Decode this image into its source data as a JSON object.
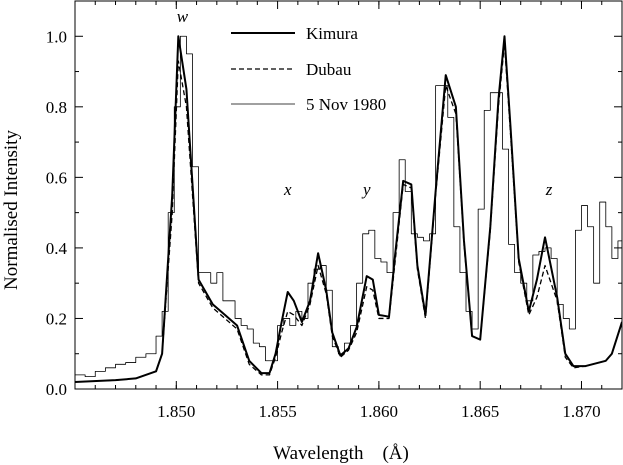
{
  "chart_data": {
    "type": "line",
    "xlabel": "Wavelength    (Å)",
    "ylabel": "Normalised Intensity",
    "xlim": [
      1.845,
      1.872
    ],
    "ylim": [
      0.0,
      1.1
    ],
    "xticks": [
      1.85,
      1.855,
      1.86,
      1.865,
      1.87
    ],
    "xtick_labels": [
      "1.850",
      "1.855",
      "1.860",
      "1.865",
      "1.870"
    ],
    "yticks": [
      0.0,
      0.2,
      0.4,
      0.6,
      0.8,
      1.0
    ],
    "ytick_labels": [
      "0.0",
      "0.2",
      "0.4",
      "0.6",
      "0.8",
      "1.0"
    ],
    "grid": false,
    "legend_position": "top-center",
    "annotations": [
      {
        "text": "w",
        "x": 1.8503,
        "y": 1.04
      },
      {
        "text": "x",
        "x": 1.8555,
        "y": 0.55
      },
      {
        "text": "y",
        "x": 1.8594,
        "y": 0.55
      },
      {
        "text": "z",
        "x": 1.8684,
        "y": 0.55
      }
    ],
    "series": [
      {
        "name": "Kimura",
        "style": "solid-thick",
        "x": [
          1.845,
          1.847,
          1.848,
          1.849,
          1.8493,
          1.8498,
          1.8501,
          1.8505,
          1.8511,
          1.8518,
          1.8524,
          1.853,
          1.8536,
          1.8542,
          1.8546,
          1.8549,
          1.8552,
          1.8555,
          1.8558,
          1.8562,
          1.8566,
          1.857,
          1.8574,
          1.8577,
          1.8581,
          1.8585,
          1.8589,
          1.8594,
          1.8597,
          1.86,
          1.8605,
          1.8608,
          1.8612,
          1.8616,
          1.8619,
          1.8623,
          1.8628,
          1.8633,
          1.8638,
          1.8642,
          1.8646,
          1.865,
          1.8655,
          1.8659,
          1.8662,
          1.8665,
          1.8669,
          1.8674,
          1.8678,
          1.8682,
          1.8688,
          1.8692,
          1.8696,
          1.8702,
          1.8712,
          1.8715,
          1.872
        ],
        "y": [
          0.02,
          0.025,
          0.03,
          0.05,
          0.1,
          0.55,
          1.0,
          0.85,
          0.31,
          0.24,
          0.21,
          0.18,
          0.08,
          0.045,
          0.045,
          0.1,
          0.19,
          0.275,
          0.25,
          0.19,
          0.25,
          0.385,
          0.28,
          0.16,
          0.095,
          0.115,
          0.175,
          0.32,
          0.31,
          0.21,
          0.205,
          0.38,
          0.59,
          0.58,
          0.35,
          0.21,
          0.56,
          0.89,
          0.8,
          0.42,
          0.15,
          0.14,
          0.46,
          0.82,
          1.0,
          0.74,
          0.37,
          0.22,
          0.31,
          0.43,
          0.26,
          0.1,
          0.065,
          0.065,
          0.08,
          0.1,
          0.19
        ]
      },
      {
        "name": "Dubau",
        "style": "dashed",
        "x": [
          1.845,
          1.847,
          1.848,
          1.849,
          1.8493,
          1.8498,
          1.8501,
          1.8505,
          1.8511,
          1.8518,
          1.8524,
          1.853,
          1.8536,
          1.8542,
          1.8546,
          1.8549,
          1.8552,
          1.8555,
          1.8558,
          1.8562,
          1.8566,
          1.857,
          1.8574,
          1.8577,
          1.8581,
          1.8585,
          1.8589,
          1.8594,
          1.8597,
          1.86,
          1.8605,
          1.8608,
          1.8612,
          1.8616,
          1.8619,
          1.8623,
          1.8628,
          1.8633,
          1.8638,
          1.8642,
          1.8646,
          1.865,
          1.8655,
          1.8659,
          1.8662,
          1.8665,
          1.8669,
          1.8674,
          1.8678,
          1.8682,
          1.8688,
          1.8692,
          1.8696,
          1.8702,
          1.8712,
          1.8715,
          1.872
        ],
        "y": [
          0.02,
          0.025,
          0.03,
          0.05,
          0.1,
          0.5,
          0.93,
          0.8,
          0.3,
          0.23,
          0.2,
          0.17,
          0.07,
          0.04,
          0.04,
          0.09,
          0.16,
          0.22,
          0.21,
          0.18,
          0.24,
          0.35,
          0.27,
          0.15,
          0.09,
          0.11,
          0.16,
          0.29,
          0.28,
          0.2,
          0.2,
          0.36,
          0.58,
          0.57,
          0.34,
          0.2,
          0.55,
          0.86,
          0.78,
          0.41,
          0.15,
          0.14,
          0.45,
          0.8,
          0.98,
          0.72,
          0.36,
          0.21,
          0.26,
          0.35,
          0.25,
          0.09,
          0.06,
          0.065,
          0.08,
          0.1,
          0.19
        ]
      },
      {
        "name": "5 Nov 1980",
        "style": "step-thin",
        "bin_edges": [
          1.845,
          1.8455,
          1.846,
          1.8465,
          1.847,
          1.8475,
          1.848,
          1.8485,
          1.849,
          1.8493,
          1.8496,
          1.8499,
          1.8502,
          1.8505,
          1.8508,
          1.8511,
          1.8514,
          1.8517,
          1.852,
          1.8523,
          1.8526,
          1.8529,
          1.8532,
          1.8535,
          1.8538,
          1.8541,
          1.8544,
          1.8547,
          1.855,
          1.8553,
          1.8556,
          1.8559,
          1.8562,
          1.8565,
          1.8568,
          1.8571,
          1.8574,
          1.8577,
          1.858,
          1.8583,
          1.8586,
          1.8589,
          1.8592,
          1.8595,
          1.8598,
          1.8601,
          1.8604,
          1.8607,
          1.861,
          1.8613,
          1.8616,
          1.8619,
          1.8622,
          1.8625,
          1.8628,
          1.8631,
          1.8634,
          1.8637,
          1.864,
          1.8643,
          1.8646,
          1.8649,
          1.8652,
          1.8655,
          1.8658,
          1.8661,
          1.8664,
          1.8667,
          1.867,
          1.8673,
          1.8676,
          1.8679,
          1.8682,
          1.8685,
          1.8688,
          1.8691,
          1.8694,
          1.8697,
          1.87,
          1.8703,
          1.8706,
          1.8709,
          1.8712,
          1.8715,
          1.8718,
          1.872
        ],
        "values": [
          0.04,
          0.035,
          0.05,
          0.06,
          0.07,
          0.075,
          0.09,
          0.1,
          0.15,
          0.22,
          0.5,
          0.8,
          1.0,
          0.95,
          0.63,
          0.33,
          0.33,
          0.3,
          0.33,
          0.25,
          0.25,
          0.2,
          0.18,
          0.17,
          0.13,
          0.12,
          0.08,
          0.08,
          0.18,
          0.2,
          0.18,
          0.22,
          0.2,
          0.3,
          0.34,
          0.35,
          0.28,
          0.12,
          0.1,
          0.13,
          0.18,
          0.3,
          0.44,
          0.45,
          0.37,
          0.36,
          0.33,
          0.5,
          0.65,
          0.56,
          0.44,
          0.43,
          0.42,
          0.44,
          0.86,
          0.86,
          0.77,
          0.46,
          0.33,
          0.22,
          0.17,
          0.51,
          0.79,
          0.84,
          0.84,
          0.68,
          0.41,
          0.33,
          0.3,
          0.25,
          0.38,
          0.39,
          0.4,
          0.37,
          0.24,
          0.2,
          0.17,
          0.45,
          0.52,
          0.46,
          0.3,
          0.53,
          0.46,
          0.37,
          0.42
        ]
      }
    ]
  }
}
